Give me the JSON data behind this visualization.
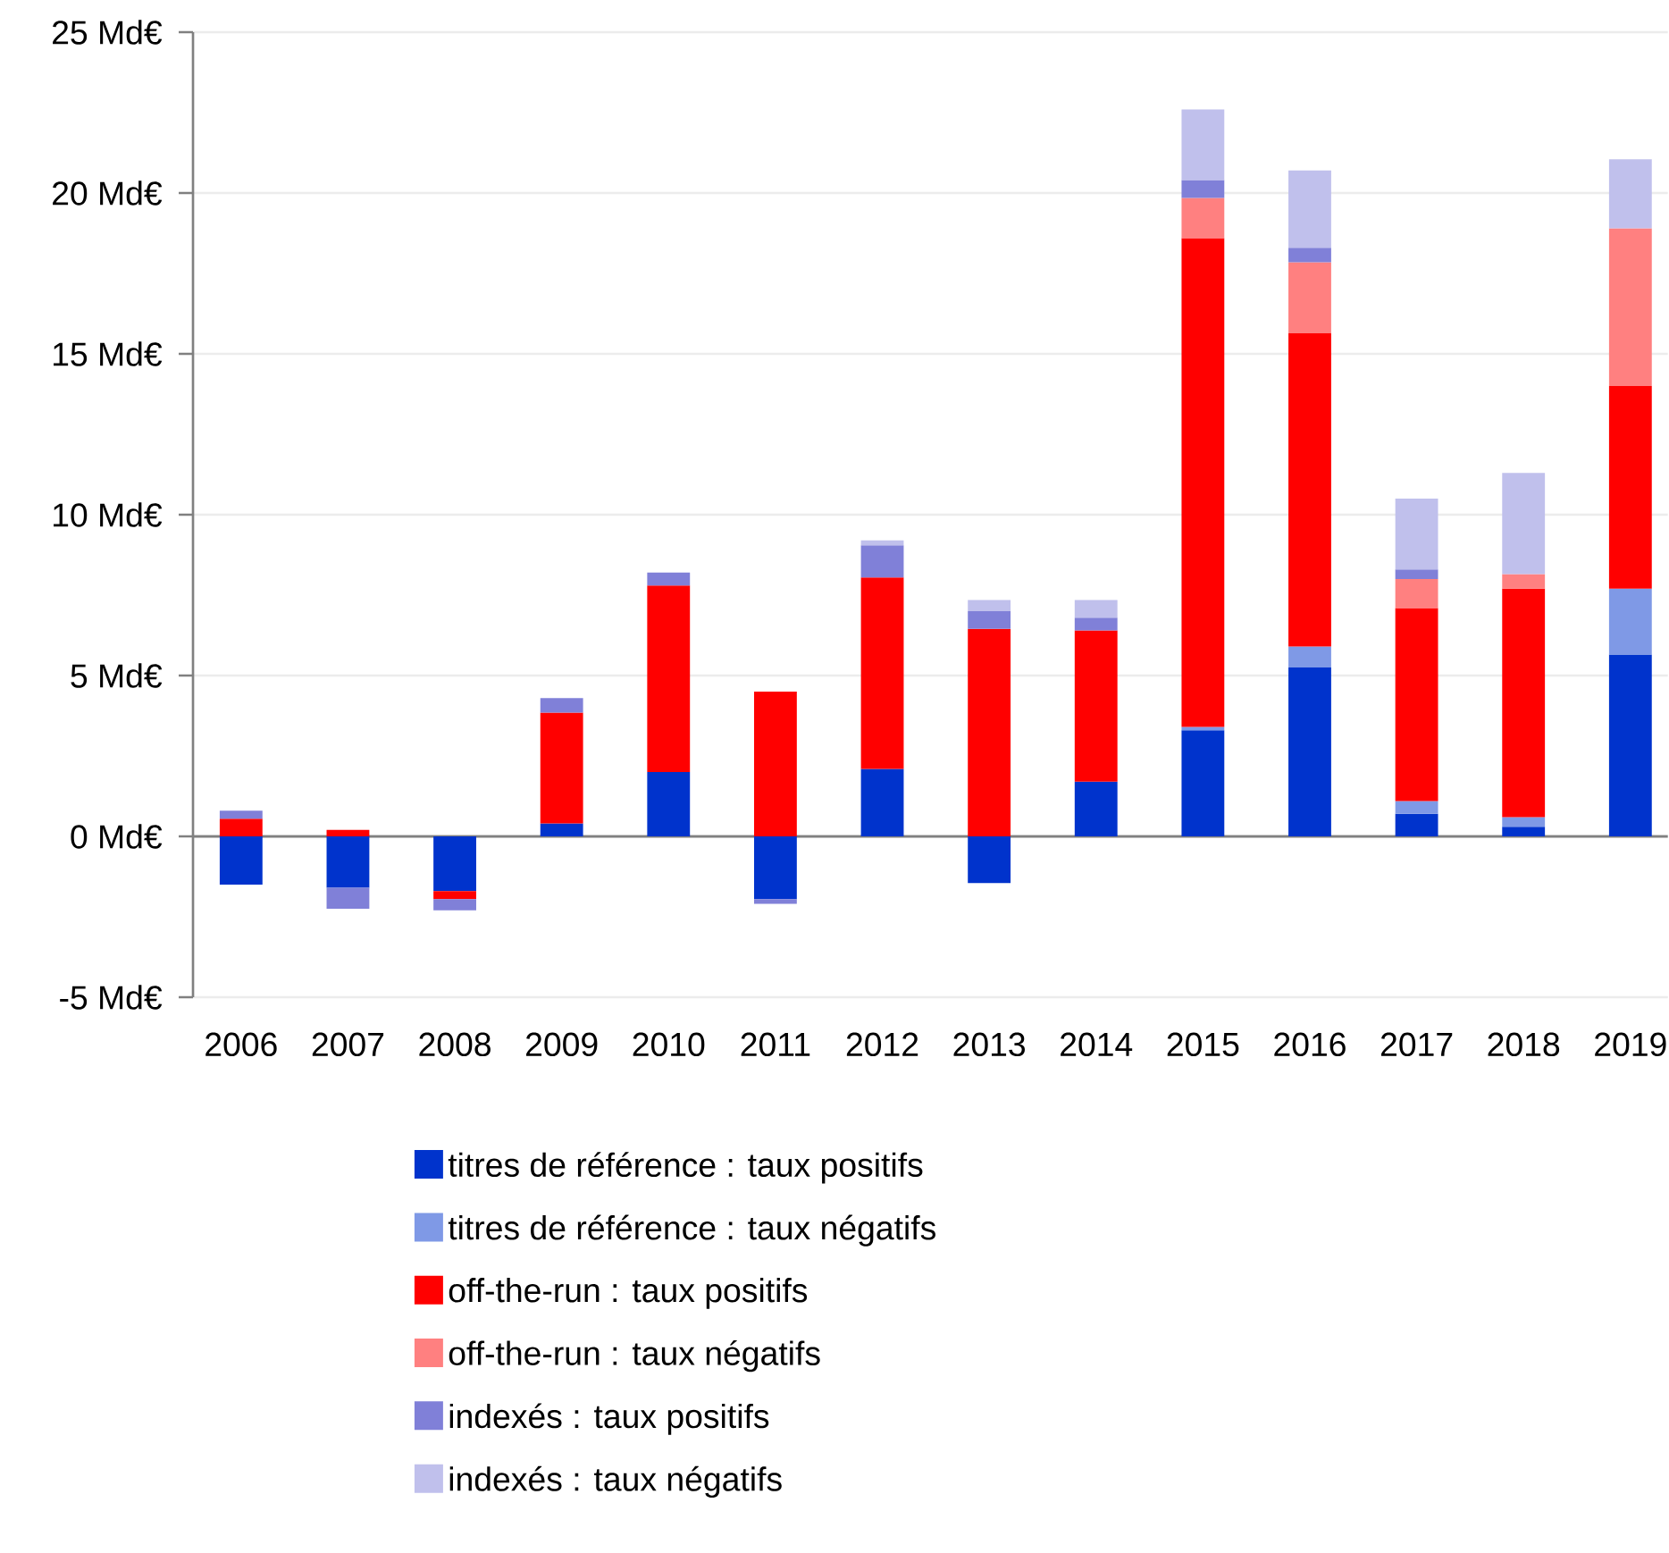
{
  "chart_data": {
    "type": "bar",
    "stacked": true,
    "categories": [
      "2006",
      "2007",
      "2008",
      "2009",
      "2010",
      "2011",
      "2012",
      "2013",
      "2014",
      "2015",
      "2016",
      "2017",
      "2018",
      "2019"
    ],
    "series": [
      {
        "name": "titres de référence : taux positifs",
        "color": "#0033cc",
        "values": [
          -1.5,
          -1.6,
          -1.7,
          0.4,
          2.0,
          -1.95,
          2.1,
          -1.45,
          1.7,
          3.3,
          5.25,
          0.7,
          0.3,
          5.65
        ]
      },
      {
        "name": "titres de référence : taux négatifs",
        "color": "#7f99e6",
        "values": [
          null,
          null,
          null,
          null,
          null,
          null,
          null,
          null,
          null,
          0.1,
          0.65,
          0.4,
          0.3,
          2.05
        ]
      },
      {
        "name": "off-the-run : taux positifs",
        "color": "#ff0000",
        "values": [
          0.55,
          0.2,
          -0.25,
          3.45,
          5.8,
          4.5,
          5.95,
          6.45,
          4.7,
          15.2,
          9.75,
          6.0,
          7.1,
          6.3
        ]
      },
      {
        "name": "off-the-run : taux négatifs",
        "color": "#ff8080",
        "values": [
          null,
          null,
          null,
          null,
          null,
          null,
          null,
          null,
          null,
          1.25,
          2.2,
          0.9,
          0.45,
          4.9
        ]
      },
      {
        "name": "indexés : taux positifs",
        "color": "#8080d8",
        "values": [
          0.25,
          -0.65,
          -0.35,
          0.45,
          0.4,
          -0.15,
          1.0,
          0.55,
          0.4,
          0.55,
          0.45,
          0.3,
          null,
          null
        ]
      },
      {
        "name": "indexés : taux négatifs",
        "color": "#c0c0ec",
        "values": [
          null,
          null,
          null,
          null,
          null,
          null,
          0.15,
          0.35,
          0.55,
          2.2,
          2.4,
          2.2,
          3.15,
          2.15
        ]
      }
    ],
    "ylim": [
      -5,
      25
    ],
    "yticks": [
      {
        "value": -5,
        "label": "-5 Md€"
      },
      {
        "value": 0,
        "label": "0 Md€"
      },
      {
        "value": 5,
        "label": "5 Md€"
      },
      {
        "value": 10,
        "label": "10 Md€"
      },
      {
        "value": 15,
        "label": "15 Md€"
      },
      {
        "value": 20,
        "label": "20 Md€"
      },
      {
        "value": 25,
        "label": "25 Md€"
      }
    ],
    "grid": "y",
    "legend": "bottom"
  }
}
